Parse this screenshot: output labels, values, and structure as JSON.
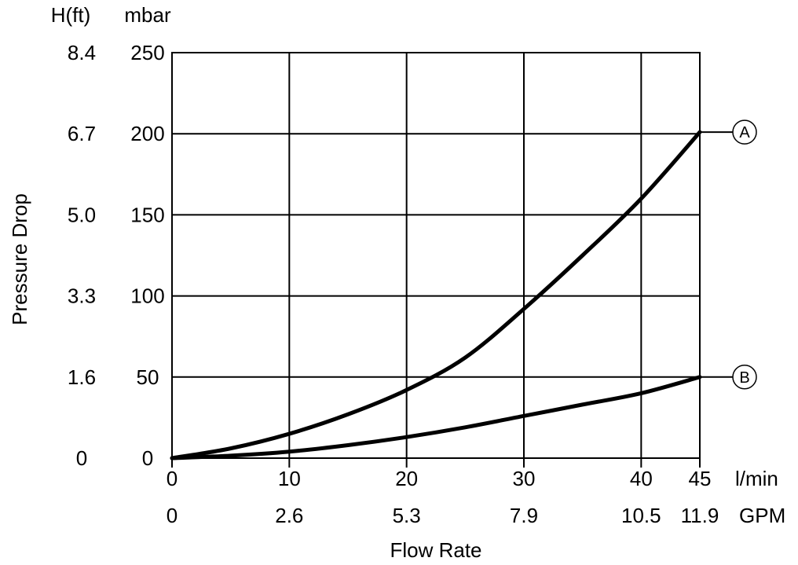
{
  "chart_data": {
    "type": "line",
    "xlabel": "Flow Rate",
    "ylabel": "Pressure Drop",
    "y_unit_primary": "mbar",
    "y_unit_secondary": "H(ft)",
    "x_unit_primary": "l/min",
    "x_unit_secondary": "GPM",
    "xlim": [
      0,
      45
    ],
    "ylim": [
      0,
      250
    ],
    "grid": true,
    "x_ticks": [
      0,
      10,
      20,
      30,
      40,
      45
    ],
    "x_tick_labels": [
      "0",
      "10",
      "20",
      "30",
      "40",
      "45"
    ],
    "x_secondary_tick_labels": [
      "0",
      "2.6",
      "5.3",
      "7.9",
      "10.5",
      "11.9"
    ],
    "y_ticks": [
      0,
      50,
      100,
      150,
      200,
      250
    ],
    "y_tick_labels": [
      "0",
      "50",
      "100",
      "150",
      "200",
      "250"
    ],
    "y_secondary_tick_labels": [
      "0",
      "1.6",
      "3.3",
      "5.0",
      "6.7",
      "8.4"
    ],
    "series": [
      {
        "name": "A",
        "x": [
          0,
          5,
          10,
          15,
          20,
          25,
          30,
          35,
          40,
          45
        ],
        "values": [
          0,
          6,
          15,
          27,
          42,
          62,
          92,
          125,
          160,
          201
        ]
      },
      {
        "name": "B",
        "x": [
          0,
          5,
          10,
          15,
          20,
          25,
          30,
          35,
          40,
          45
        ],
        "values": [
          0,
          1.5,
          4,
          8,
          13,
          19,
          26,
          33,
          40,
          50
        ]
      }
    ]
  }
}
